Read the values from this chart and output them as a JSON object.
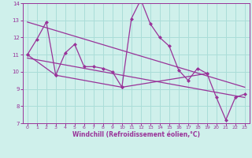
{
  "zigzag_x": [
    0,
    1,
    2,
    3,
    4,
    5,
    6,
    7,
    8,
    9,
    10,
    11,
    12,
    13,
    14,
    15,
    16,
    17,
    18,
    19
  ],
  "zigzag_y": [
    11.0,
    11.9,
    12.9,
    9.8,
    11.1,
    11.6,
    10.3,
    10.3,
    10.2,
    10.0,
    9.1,
    13.1,
    14.2,
    12.8,
    12.0,
    11.5,
    10.1,
    9.5,
    10.2,
    9.9
  ],
  "low_x": [
    0,
    3,
    10,
    19,
    20,
    21,
    22,
    23
  ],
  "low_y": [
    11.0,
    9.8,
    9.1,
    9.9,
    8.5,
    7.2,
    8.5,
    8.7
  ],
  "upper_trend_x": [
    0,
    23
  ],
  "upper_trend_y": [
    12.9,
    9.1
  ],
  "lower_trend_x": [
    0,
    23
  ],
  "lower_trend_y": [
    10.8,
    8.5
  ],
  "background_color": "#cff0eb",
  "grid_color": "#aaddd8",
  "line_color": "#993399",
  "xlabel": "Windchill (Refroidissement éolien,°C)",
  "xlim": [
    -0.5,
    23.5
  ],
  "ylim": [
    7,
    14
  ],
  "yticks": [
    7,
    8,
    9,
    10,
    11,
    12,
    13,
    14
  ],
  "xticks": [
    0,
    1,
    2,
    3,
    4,
    5,
    6,
    7,
    8,
    9,
    10,
    11,
    12,
    13,
    14,
    15,
    16,
    17,
    18,
    19,
    20,
    21,
    22,
    23
  ]
}
